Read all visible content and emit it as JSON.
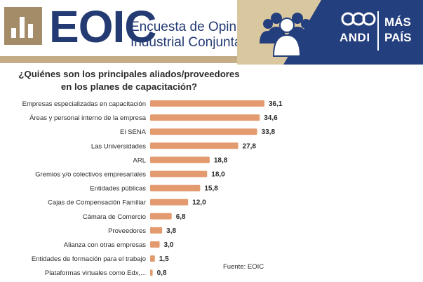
{
  "header": {
    "brand": "EOIC",
    "subtitle_line1": "Encuesta de Opinión",
    "subtitle_line2": "Industrial Conjunta",
    "partner_name": "ANDI",
    "partner_tagline_1": "MÁS",
    "partner_tagline_2": "PAÍS",
    "colors": {
      "navy": "#243a73",
      "panel": "#243f7d",
      "gold": "#a48c69",
      "tan": "#d9c7a0"
    }
  },
  "chart_data": {
    "type": "bar",
    "orientation": "horizontal",
    "title": "¿Quiénes son los principales aliados/proveedores en los planes de capacitación?",
    "categories": [
      "Empresas especializadas en capacitación",
      "Áreas y personal interno de la empresa",
      "El SENA",
      "Las Universidades",
      "ARL",
      "Gremios y/o colectivos empresariales",
      "Entidades públicas",
      "Cajas de Compensación Familiar",
      "Cámara de Comercio",
      "Proveedores",
      "Alianza con otras empresas",
      "Entidades de formación para el trabajo",
      "Plataformas virtuales como Edx,..."
    ],
    "values": [
      36.1,
      34.6,
      33.8,
      27.8,
      18.8,
      18.0,
      15.8,
      12.0,
      6.8,
      3.8,
      3.0,
      1.5,
      0.8
    ],
    "value_labels": [
      "36,1",
      "34,6",
      "33,8",
      "27,8",
      "18,8",
      "18,0",
      "15,8",
      "12,0",
      "6,8",
      "3,8",
      "3,0",
      "1,5",
      "0,8"
    ],
    "xlim": [
      0,
      36.1
    ],
    "bar_color": "#e29a6e",
    "xlabel": "",
    "ylabel": "",
    "source": "Fuente: EOIC"
  }
}
